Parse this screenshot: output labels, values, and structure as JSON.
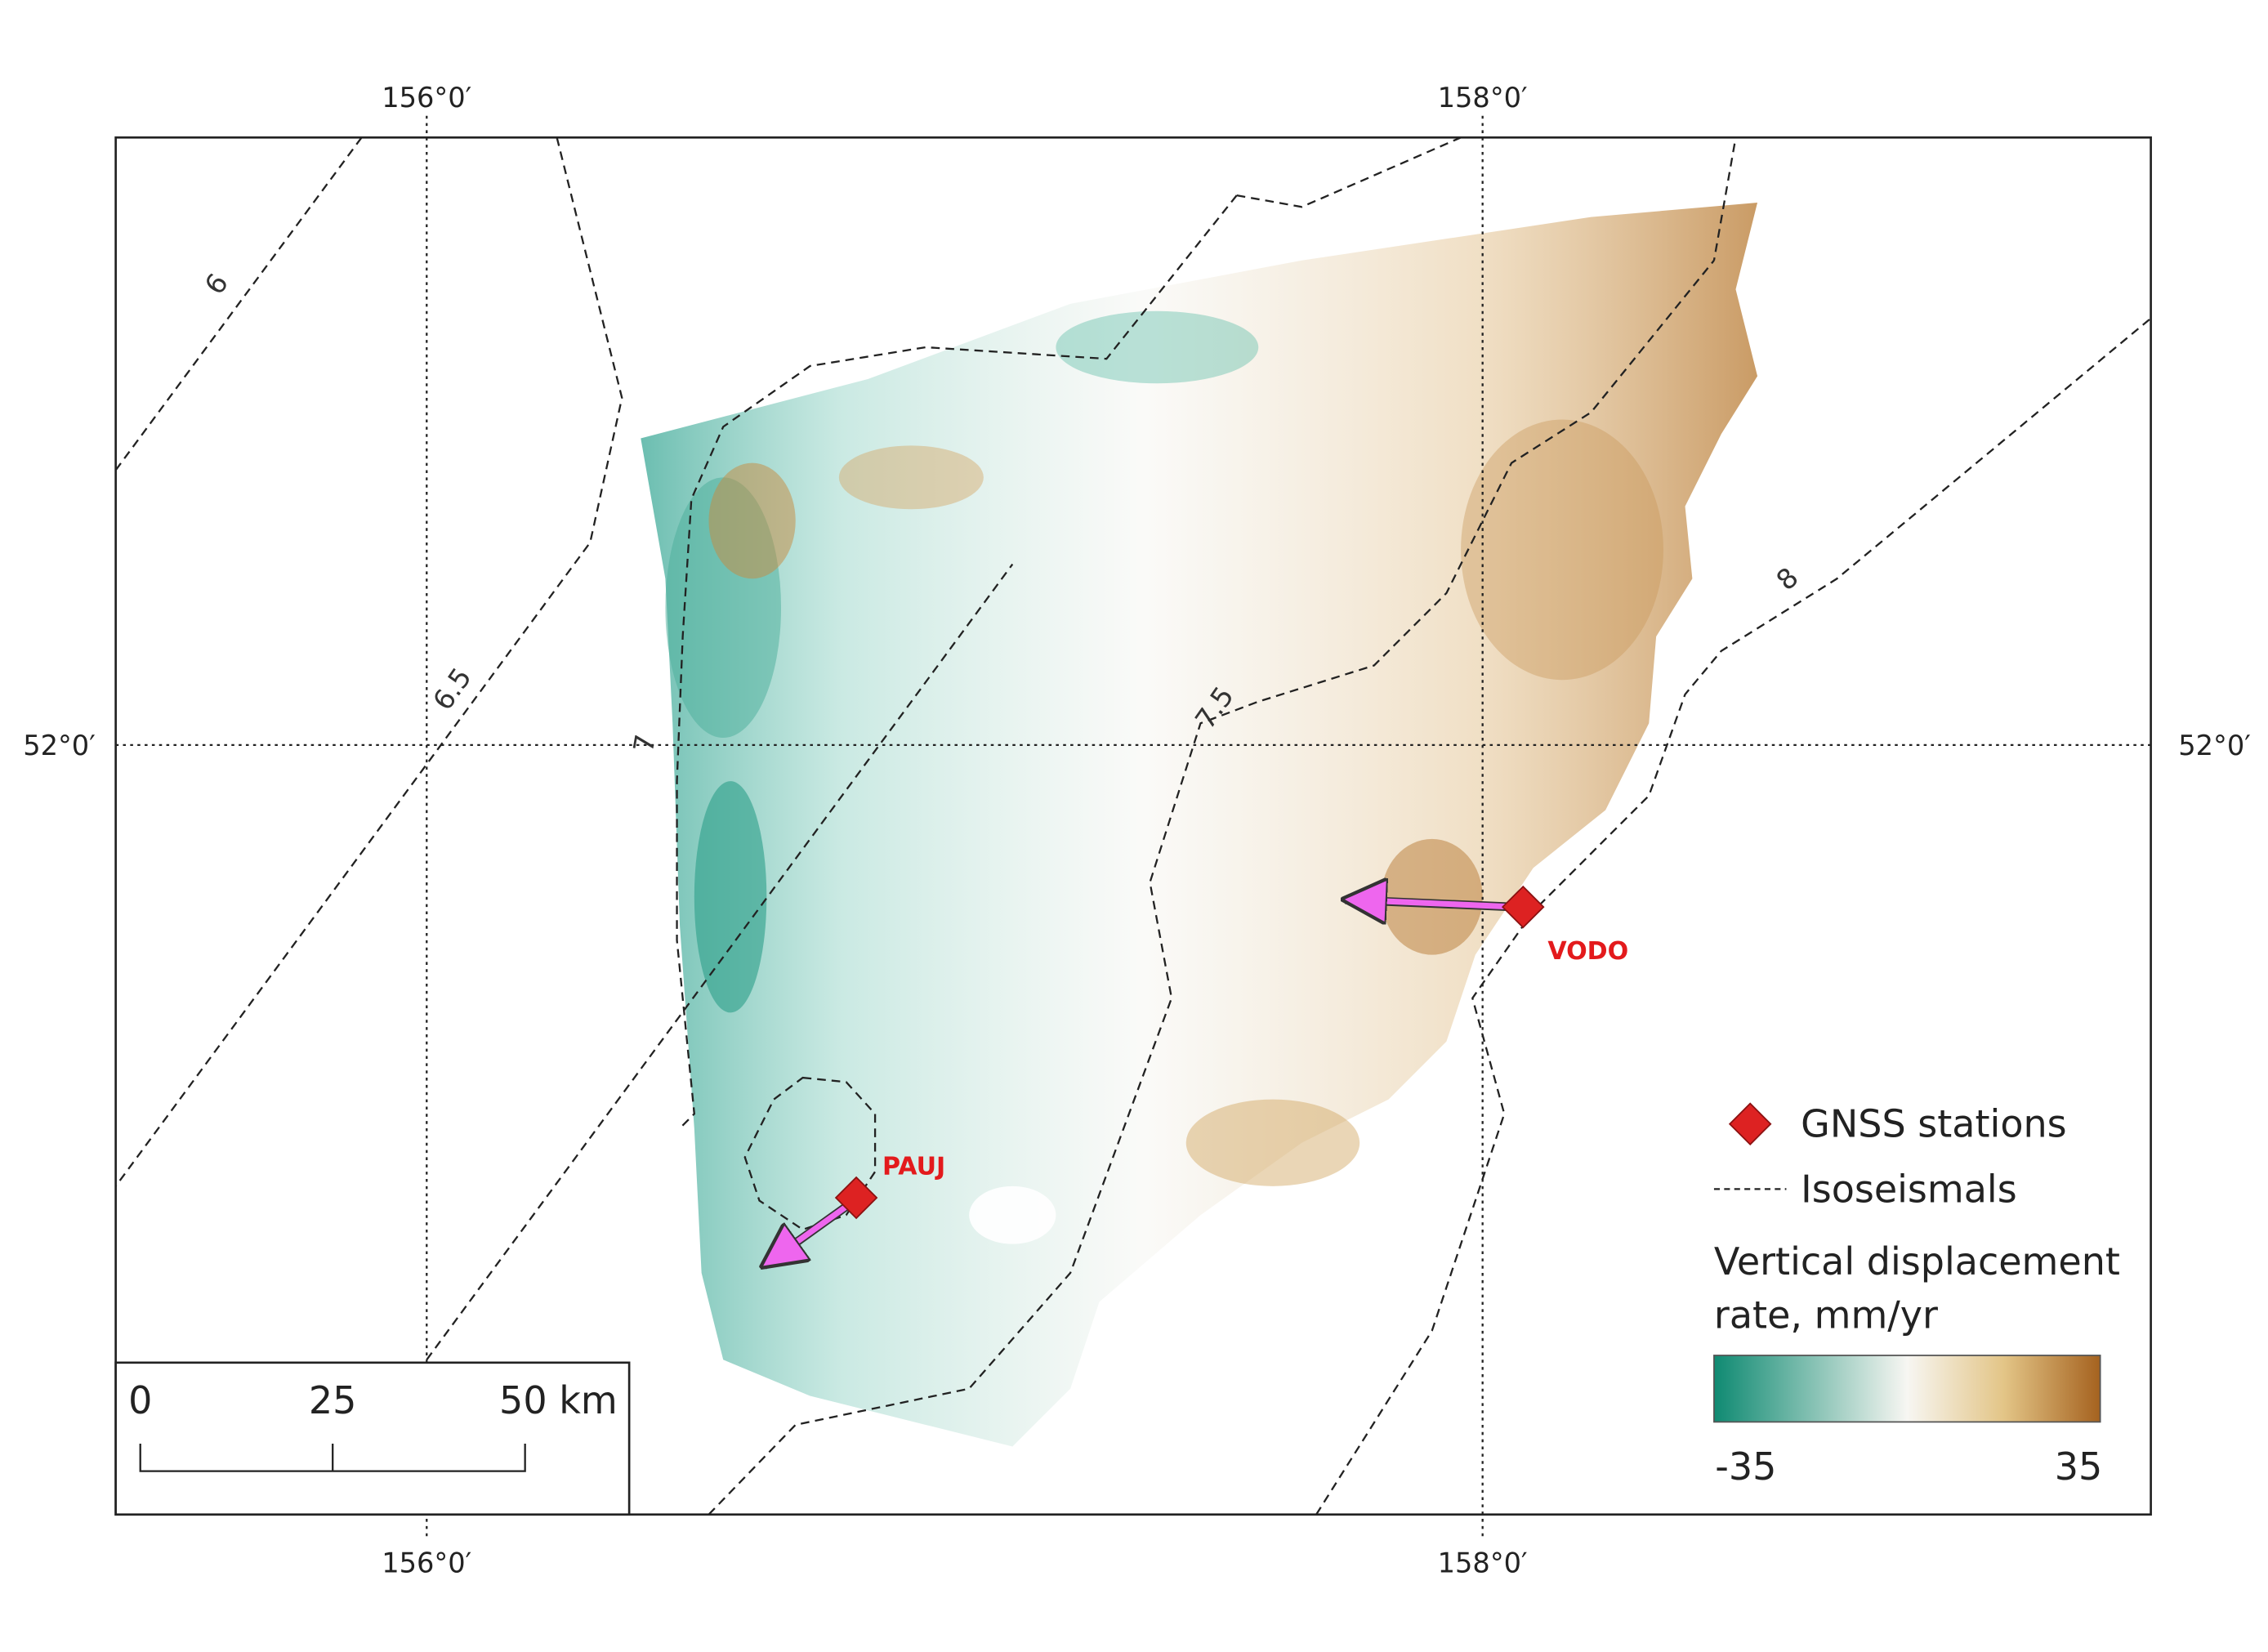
{
  "graticule": {
    "lon_labels": [
      "156°0′",
      "158°0′"
    ],
    "lat_label": "52°0′"
  },
  "isoseismals": {
    "labels": [
      "6",
      "6.5",
      "7",
      "7.5",
      "8"
    ]
  },
  "stations": [
    {
      "name": "VODO"
    },
    {
      "name": "PAUJ"
    }
  ],
  "legend": {
    "stations": "GNSS stations",
    "isoseismals": "Isoseismals",
    "colorbar_title": [
      "Vertical displacement",
      "rate, mm/yr"
    ],
    "colorbar_min": -35,
    "colorbar_max": 35
  },
  "scale_bar": {
    "labels": [
      "0",
      "25",
      "50 km"
    ]
  }
}
